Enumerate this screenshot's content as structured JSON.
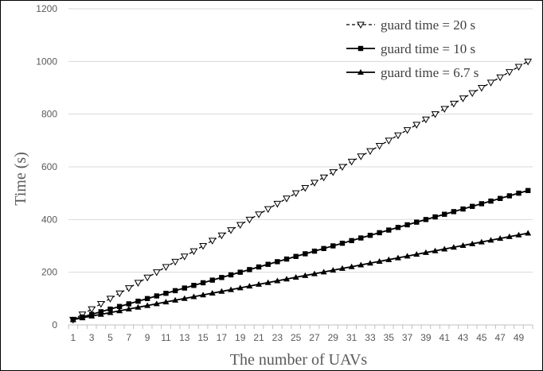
{
  "chart_data": {
    "type": "line",
    "xlabel": "The number of UAVs",
    "ylabel": "Time  (s)",
    "ylim": [
      0,
      1200
    ],
    "yticks": [
      0,
      200,
      400,
      600,
      800,
      1000,
      1200
    ],
    "x": [
      1,
      2,
      3,
      4,
      5,
      6,
      7,
      8,
      9,
      10,
      11,
      12,
      13,
      14,
      15,
      16,
      17,
      18,
      19,
      20,
      21,
      22,
      23,
      24,
      25,
      26,
      27,
      28,
      29,
      30,
      31,
      32,
      33,
      34,
      35,
      36,
      37,
      38,
      39,
      40,
      41,
      42,
      43,
      44,
      45,
      46,
      47,
      48,
      49,
      50
    ],
    "xtick_labels": [
      "1",
      "3",
      "5",
      "7",
      "9",
      "11",
      "13",
      "15",
      "17",
      "19",
      "21",
      "23",
      "25",
      "27",
      "29",
      "31",
      "33",
      "35",
      "37",
      "39",
      "41",
      "43",
      "45",
      "47",
      "49"
    ],
    "grid": "horizontal",
    "legend_position": "top-right",
    "series": [
      {
        "name": "guard time = 20 s",
        "marker": "triangle-down-open",
        "line_style": "dashed",
        "values": [
          20,
          40,
          60,
          80,
          100,
          120,
          140,
          160,
          180,
          200,
          220,
          240,
          260,
          280,
          300,
          320,
          340,
          360,
          380,
          400,
          420,
          440,
          460,
          480,
          500,
          520,
          540,
          560,
          580,
          600,
          620,
          640,
          660,
          680,
          700,
          720,
          740,
          760,
          780,
          800,
          820,
          840,
          860,
          880,
          900,
          920,
          940,
          960,
          980,
          1000
        ]
      },
      {
        "name": "guard time = 10 s",
        "marker": "square",
        "line_style": "solid",
        "values": [
          20,
          30,
          40,
          50,
          60,
          70,
          80,
          90,
          100,
          110,
          120,
          130,
          140,
          150,
          160,
          170,
          180,
          190,
          200,
          210,
          220,
          230,
          240,
          250,
          260,
          270,
          280,
          290,
          300,
          310,
          320,
          330,
          340,
          350,
          360,
          370,
          380,
          390,
          400,
          410,
          420,
          430,
          440,
          450,
          460,
          470,
          480,
          490,
          500,
          510
        ]
      },
      {
        "name": "guard time = 6.7 s",
        "marker": "triangle-up",
        "line_style": "solid",
        "values": [
          20,
          26.7,
          33.4,
          40.1,
          46.8,
          53.5,
          60.2,
          66.9,
          73.6,
          80.3,
          87,
          93.7,
          100.4,
          107.1,
          113.8,
          120.5,
          127.2,
          133.9,
          140.6,
          147.3,
          154,
          160.7,
          167.4,
          174.1,
          180.8,
          187.5,
          194.2,
          200.9,
          207.6,
          214.3,
          221,
          227.7,
          234.4,
          241.1,
          247.8,
          254.5,
          261.2,
          267.9,
          274.6,
          281.3,
          288,
          294.7,
          301.4,
          308.1,
          314.8,
          321.5,
          328.2,
          334.9,
          341.6,
          348.3
        ]
      }
    ]
  }
}
